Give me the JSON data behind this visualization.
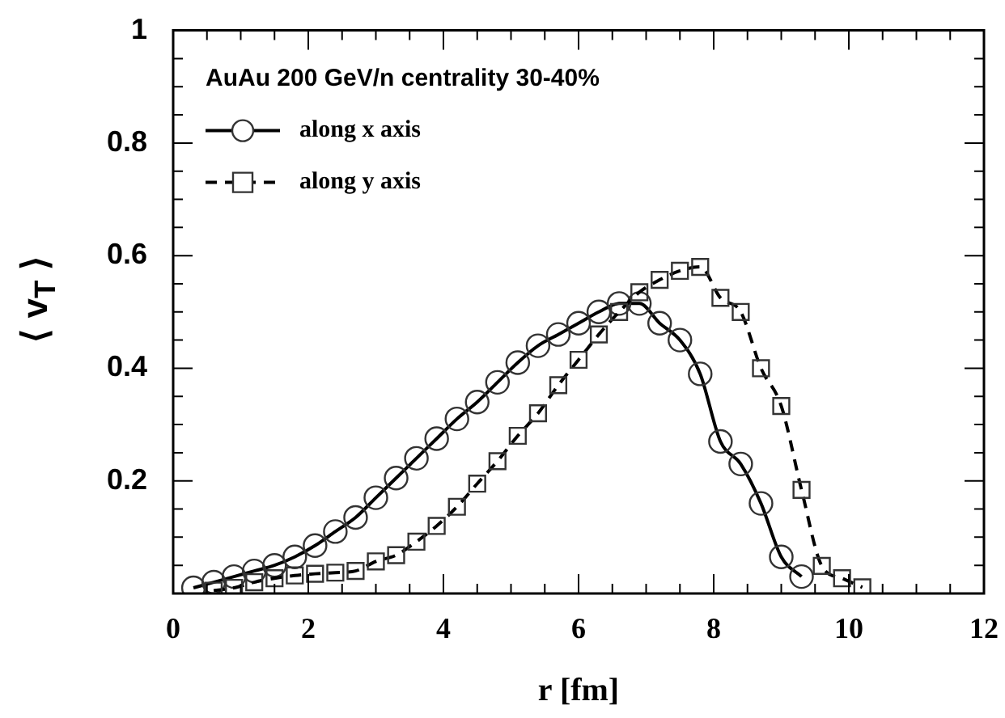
{
  "chart_data": {
    "type": "line",
    "xlabel": "r [fm]",
    "ylabel": "⟨ v$_{T}$ ⟩",
    "legend_title": "AuAu 200 GeV/n centrality 30-40%",
    "legend": "top left",
    "grid": false,
    "xlim": [
      0,
      12
    ],
    "ylim": [
      0,
      1
    ],
    "xticks": [
      0,
      {
        "value": 0.5,
        "label": null
      },
      {
        "value": 1,
        "label": null
      },
      {
        "value": 1.5,
        "label": null
      },
      2,
      {
        "value": 2.5,
        "label": null
      },
      {
        "value": 3,
        "label": null
      },
      {
        "value": 3.5,
        "label": null
      },
      4,
      {
        "value": 4.5,
        "label": null
      },
      {
        "value": 5,
        "label": null
      },
      {
        "value": 5.5,
        "label": null
      },
      6,
      {
        "value": 6.5,
        "label": null
      },
      {
        "value": 7,
        "label": null
      },
      {
        "value": 7.5,
        "label": null
      },
      8,
      {
        "value": 8.5,
        "label": null
      },
      {
        "value": 9,
        "label": null
      },
      {
        "value": 9.5,
        "label": null
      },
      10,
      {
        "value": 10.5,
        "label": null
      },
      {
        "value": 11,
        "label": null
      },
      {
        "value": 11.5,
        "label": null
      },
      12
    ],
    "yticks": [
      {
        "value": 0.05,
        "label": null
      },
      {
        "value": 0.1,
        "label": null
      },
      {
        "value": 0.15,
        "label": null
      },
      0.2,
      {
        "value": 0.25,
        "label": null
      },
      {
        "value": 0.3,
        "label": null
      },
      {
        "value": 0.35,
        "label": null
      },
      0.4,
      {
        "value": 0.45,
        "label": null
      },
      {
        "value": 0.5,
        "label": null
      },
      {
        "value": 0.55,
        "label": null
      },
      0.6,
      {
        "value": 0.65,
        "label": null
      },
      {
        "value": 0.7,
        "label": null
      },
      {
        "value": 0.75,
        "label": null
      },
      0.8,
      {
        "value": 0.85,
        "label": null
      },
      {
        "value": 0.9,
        "label": null
      },
      {
        "value": 0.95,
        "label": null
      },
      1
    ],
    "series": [
      {
        "name": "along x axis",
        "color": "#000000",
        "marker": "circle",
        "line_style": "solid",
        "x": [
          0.3,
          0.6,
          0.9,
          1.2,
          1.5,
          1.8,
          2.1,
          2.4,
          2.7,
          3.0,
          3.3,
          3.6,
          3.9,
          4.2,
          4.5,
          4.8,
          5.1,
          5.4,
          5.7,
          6.0,
          6.3,
          6.6,
          6.9,
          7.2,
          7.5,
          7.8,
          8.1,
          8.4,
          8.7,
          9.0,
          9.3
        ],
        "values": [
          0.01,
          0.02,
          0.03,
          0.04,
          0.05,
          0.065,
          0.085,
          0.11,
          0.135,
          0.17,
          0.205,
          0.24,
          0.275,
          0.31,
          0.34,
          0.375,
          0.41,
          0.44,
          0.46,
          0.48,
          0.5,
          0.515,
          0.515,
          0.48,
          0.45,
          0.39,
          0.27,
          0.23,
          0.16,
          0.065,
          0.03
        ]
      },
      {
        "name": "along y axis",
        "color": "#000000",
        "marker": "square",
        "line_style": "dashed",
        "x": [
          0.6,
          0.9,
          1.2,
          1.5,
          1.8,
          2.1,
          2.4,
          2.7,
          3.0,
          3.3,
          3.6,
          3.9,
          4.2,
          4.5,
          4.8,
          5.1,
          5.4,
          5.7,
          6.0,
          6.3,
          6.6,
          6.9,
          7.2,
          7.5,
          7.8,
          8.1,
          8.4,
          8.7,
          9.0,
          9.3,
          9.6,
          9.9,
          10.2
        ],
        "values": [
          0.005,
          0.01,
          0.02,
          0.027,
          0.032,
          0.035,
          0.037,
          0.04,
          0.057,
          0.068,
          0.092,
          0.12,
          0.154,
          0.195,
          0.235,
          0.28,
          0.32,
          0.37,
          0.415,
          0.46,
          0.5,
          0.535,
          0.557,
          0.573,
          0.58,
          0.525,
          0.5,
          0.4,
          0.333,
          0.184,
          0.049,
          0.027,
          0.011
        ]
      }
    ]
  }
}
